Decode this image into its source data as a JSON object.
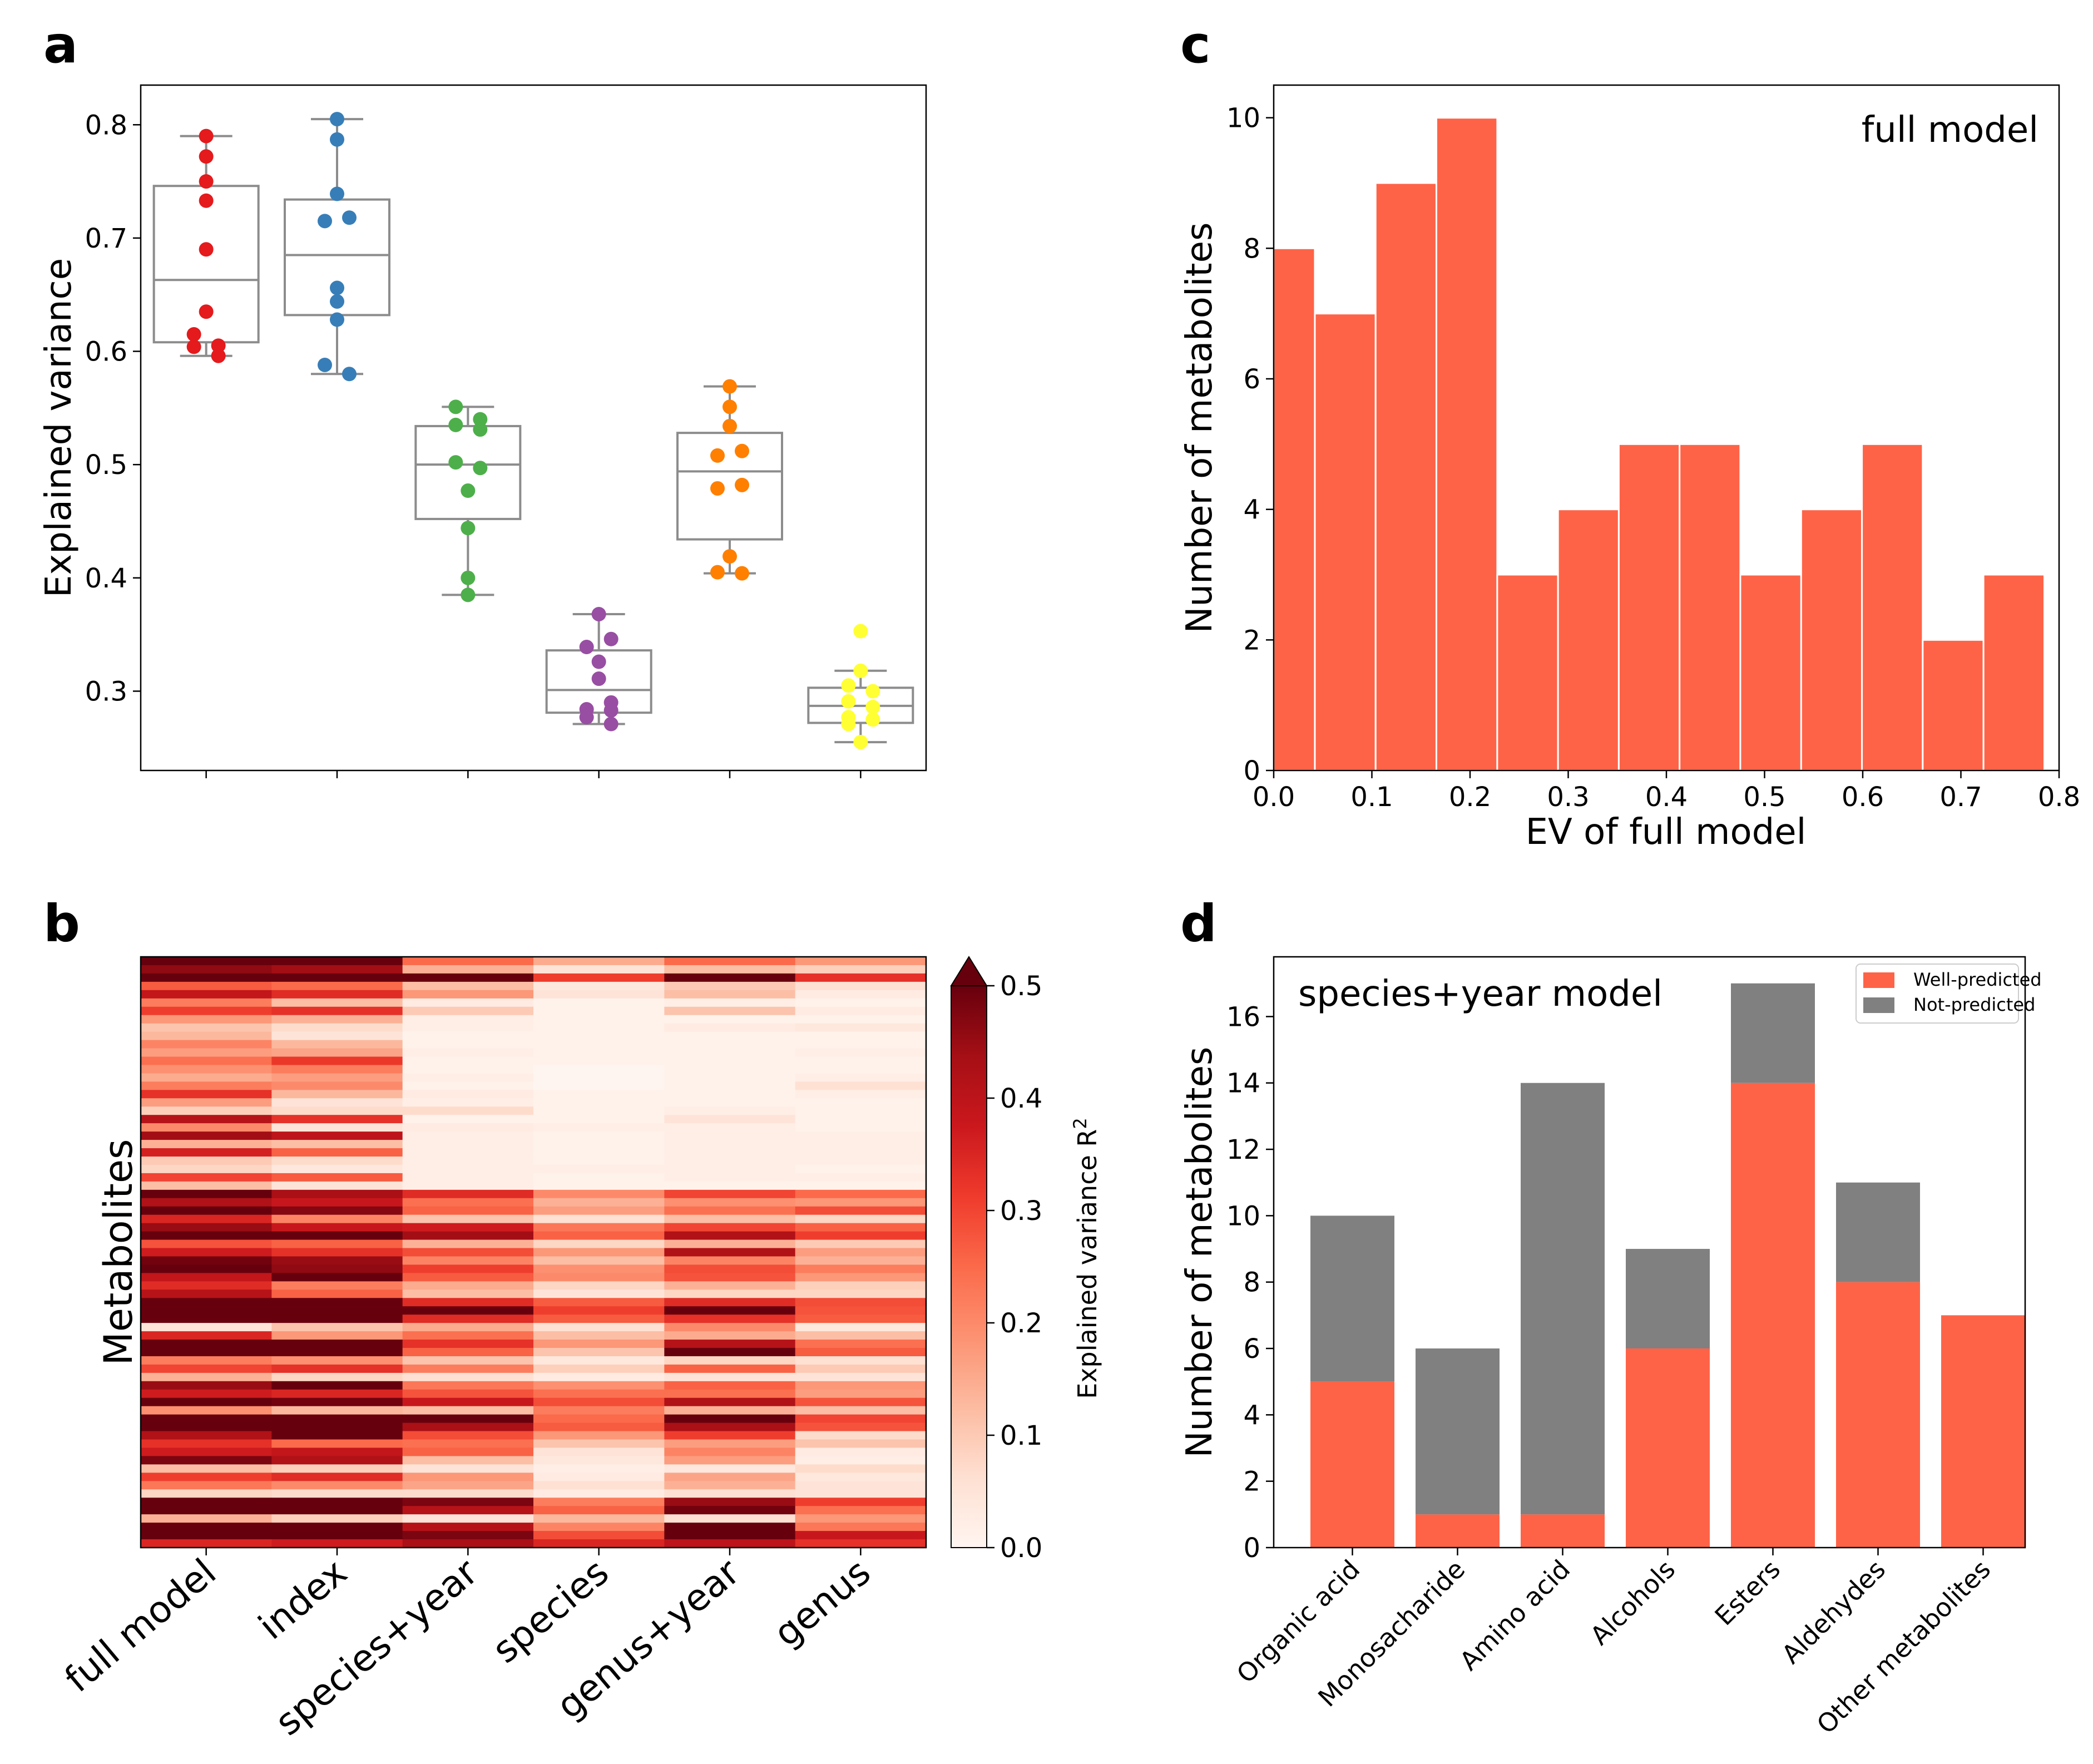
{
  "panel_labels": {
    "a": "a",
    "b": "b",
    "c": "c",
    "d": "d"
  },
  "colors": {
    "full_model": "#e41a1c",
    "index": "#377eb8",
    "species_year": "#4daf4a",
    "species": "#984ea3",
    "genus_year": "#ff7f00",
    "genus": "#ffff33",
    "bar": "#ff6347",
    "not_predicted": "#808080",
    "box": "#8c8c8c"
  },
  "chart_data": [
    {
      "panel": "a",
      "type": "box",
      "title": "",
      "xlabel": "",
      "ylabel": "Explained variance",
      "ylim": [
        0.23,
        0.835
      ],
      "yticks": [
        "0.3",
        "0.4",
        "0.5",
        "0.6",
        "0.7",
        "0.8"
      ],
      "categories": [
        "full model",
        "index",
        "species+year",
        "species",
        "genus+year",
        "genus"
      ],
      "series": [
        {
          "name": "full model",
          "color": "#e41a1c",
          "points": [
            0.79,
            0.772,
            0.75,
            0.733,
            0.69,
            0.635,
            0.615,
            0.605,
            0.604,
            0.596
          ],
          "q1": 0.608,
          "median": 0.663,
          "q3": 0.746,
          "whisker_low": 0.596,
          "whisker_high": 0.79
        },
        {
          "name": "index",
          "color": "#377eb8",
          "points": [
            0.805,
            0.787,
            0.739,
            0.718,
            0.715,
            0.656,
            0.644,
            0.628,
            0.588,
            0.58
          ],
          "q1": 0.632,
          "median": 0.685,
          "q3": 0.734,
          "whisker_low": 0.58,
          "whisker_high": 0.805
        },
        {
          "name": "species+year",
          "color": "#4daf4a",
          "points": [
            0.551,
            0.54,
            0.535,
            0.531,
            0.502,
            0.497,
            0.477,
            0.444,
            0.4,
            0.385
          ],
          "q1": 0.452,
          "median": 0.5,
          "q3": 0.534,
          "whisker_low": 0.385,
          "whisker_high": 0.551
        },
        {
          "name": "species",
          "color": "#984ea3",
          "points": [
            0.368,
            0.346,
            0.339,
            0.326,
            0.311,
            0.29,
            0.284,
            0.283,
            0.277,
            0.271
          ],
          "q1": 0.281,
          "median": 0.301,
          "q3": 0.336,
          "whisker_low": 0.271,
          "whisker_high": 0.368
        },
        {
          "name": "genus+year",
          "color": "#ff7f00",
          "points": [
            0.569,
            0.551,
            0.534,
            0.512,
            0.508,
            0.482,
            0.479,
            0.419,
            0.405,
            0.404
          ],
          "q1": 0.434,
          "median": 0.494,
          "q3": 0.528,
          "whisker_low": 0.404,
          "whisker_high": 0.569
        },
        {
          "name": "genus",
          "color": "#ffff33",
          "points": [
            0.353,
            0.318,
            0.305,
            0.3,
            0.291,
            0.286,
            0.277,
            0.275,
            0.271,
            0.255
          ],
          "q1": 0.272,
          "median": 0.287,
          "q3": 0.303,
          "whisker_low": 0.255,
          "whisker_high": 0.318
        }
      ]
    },
    {
      "panel": "b",
      "type": "heatmap",
      "xlabel": "",
      "ylabel": "Metabolites",
      "categories": [
        "full model",
        "index",
        "species+year",
        "species",
        "genus+year",
        "genus"
      ],
      "colorbar_label": "Explained variance R",
      "colorbar_label_sup": "2",
      "colorbar_ticks": [
        "0.0",
        "0.1",
        "0.2",
        "0.3",
        "0.4",
        "0.5"
      ],
      "vmin": 0.0,
      "vmax": 0.5,
      "rows": [
        [
          0.53,
          0.5,
          0.25,
          0.15,
          0.25,
          0.18
        ],
        [
          0.46,
          0.44,
          0.14,
          0.05,
          0.12,
          0.09
        ],
        [
          0.56,
          0.52,
          0.51,
          0.31,
          0.55,
          0.33
        ],
        [
          0.27,
          0.25,
          0.12,
          0.04,
          0.1,
          0.06
        ],
        [
          0.39,
          0.34,
          0.18,
          0.05,
          0.12,
          0.03
        ],
        [
          0.22,
          0.12,
          0.03,
          0.01,
          0.02,
          0.01
        ],
        [
          0.31,
          0.33,
          0.1,
          0.01,
          0.11,
          0.03
        ],
        [
          0.18,
          0.14,
          0.02,
          0.01,
          0.01,
          0.01
        ],
        [
          0.11,
          0.07,
          0.02,
          0.01,
          0.03,
          0.04
        ],
        [
          0.13,
          0.05,
          0.01,
          0.01,
          0.01,
          0.01
        ],
        [
          0.21,
          0.13,
          0.01,
          0.01,
          0.01,
          0.01
        ],
        [
          0.17,
          0.16,
          0.02,
          0.01,
          0.01,
          0.02
        ],
        [
          0.24,
          0.32,
          0.01,
          0.01,
          0.01,
          0.01
        ],
        [
          0.19,
          0.22,
          0.01,
          0.0,
          0.01,
          0.01
        ],
        [
          0.15,
          0.17,
          0.02,
          0.0,
          0.01,
          0.02
        ],
        [
          0.22,
          0.2,
          0.01,
          0.0,
          0.01,
          0.06
        ],
        [
          0.33,
          0.13,
          0.03,
          0.01,
          0.01,
          0.02
        ],
        [
          0.17,
          0.05,
          0.02,
          0.01,
          0.01,
          0.01
        ],
        [
          0.09,
          0.07,
          0.07,
          0.01,
          0.02,
          0.01
        ],
        [
          0.41,
          0.33,
          0.01,
          0.01,
          0.05,
          0.01
        ],
        [
          0.2,
          0.05,
          0.03,
          0.02,
          0.02,
          0.01
        ],
        [
          0.44,
          0.4,
          0.02,
          0.01,
          0.02,
          0.02
        ],
        [
          0.14,
          0.12,
          0.02,
          0.01,
          0.02,
          0.02
        ],
        [
          0.36,
          0.26,
          0.02,
          0.01,
          0.02,
          0.02
        ],
        [
          0.1,
          0.07,
          0.02,
          0.01,
          0.02,
          0.02
        ],
        [
          0.08,
          0.04,
          0.02,
          0.02,
          0.02,
          0.01
        ],
        [
          0.3,
          0.27,
          0.02,
          0.01,
          0.02,
          0.02
        ],
        [
          0.12,
          0.05,
          0.02,
          0.01,
          0.01,
          0.01
        ],
        [
          0.56,
          0.43,
          0.34,
          0.2,
          0.3,
          0.25
        ],
        [
          0.42,
          0.38,
          0.24,
          0.14,
          0.19,
          0.18
        ],
        [
          0.53,
          0.47,
          0.26,
          0.17,
          0.24,
          0.29
        ],
        [
          0.35,
          0.21,
          0.11,
          0.06,
          0.12,
          0.08
        ],
        [
          0.45,
          0.38,
          0.37,
          0.23,
          0.3,
          0.26
        ],
        [
          0.6,
          0.58,
          0.44,
          0.26,
          0.42,
          0.31
        ],
        [
          0.28,
          0.26,
          0.14,
          0.08,
          0.14,
          0.1
        ],
        [
          0.37,
          0.33,
          0.29,
          0.18,
          0.42,
          0.17
        ],
        [
          0.49,
          0.45,
          0.21,
          0.12,
          0.21,
          0.14
        ],
        [
          0.51,
          0.46,
          0.31,
          0.19,
          0.29,
          0.22
        ],
        [
          0.39,
          0.55,
          0.27,
          0.2,
          0.28,
          0.18
        ],
        [
          0.34,
          0.22,
          0.15,
          0.08,
          0.14,
          0.09
        ],
        [
          0.41,
          0.26,
          0.12,
          0.05,
          0.08,
          0.08
        ],
        [
          0.6,
          0.6,
          0.34,
          0.27,
          0.34,
          0.29
        ],
        [
          0.62,
          0.59,
          0.5,
          0.31,
          0.57,
          0.28
        ],
        [
          0.62,
          0.61,
          0.34,
          0.27,
          0.33,
          0.27
        ],
        [
          0.05,
          0.11,
          0.15,
          0.06,
          0.2,
          0.04
        ],
        [
          0.35,
          0.18,
          0.24,
          0.12,
          0.15,
          0.12
        ],
        [
          0.55,
          0.52,
          0.33,
          0.18,
          0.41,
          0.24
        ],
        [
          0.52,
          0.56,
          0.26,
          0.11,
          0.55,
          0.27
        ],
        [
          0.22,
          0.19,
          0.11,
          0.04,
          0.08,
          0.06
        ],
        [
          0.3,
          0.33,
          0.22,
          0.09,
          0.26,
          0.1
        ],
        [
          0.14,
          0.08,
          0.06,
          0.03,
          0.05,
          0.05
        ],
        [
          0.45,
          0.53,
          0.23,
          0.19,
          0.26,
          0.18
        ],
        [
          0.37,
          0.35,
          0.28,
          0.24,
          0.24,
          0.17
        ],
        [
          0.58,
          0.49,
          0.38,
          0.29,
          0.42,
          0.28
        ],
        [
          0.19,
          0.13,
          0.12,
          0.22,
          0.14,
          0.12
        ],
        [
          0.6,
          0.59,
          0.5,
          0.25,
          0.55,
          0.3
        ],
        [
          0.6,
          0.6,
          0.43,
          0.27,
          0.43,
          0.28
        ],
        [
          0.42,
          0.56,
          0.29,
          0.18,
          0.31,
          0.07
        ],
        [
          0.33,
          0.25,
          0.24,
          0.11,
          0.17,
          0.11
        ],
        [
          0.37,
          0.39,
          0.26,
          0.05,
          0.21,
          0.03
        ],
        [
          0.48,
          0.42,
          0.12,
          0.04,
          0.17,
          0.02
        ],
        [
          0.12,
          0.09,
          0.05,
          0.02,
          0.04,
          0.07
        ],
        [
          0.31,
          0.34,
          0.18,
          0.03,
          0.16,
          0.04
        ],
        [
          0.23,
          0.2,
          0.16,
          0.06,
          0.14,
          0.05
        ],
        [
          0.08,
          0.07,
          0.07,
          0.03,
          0.06,
          0.05
        ],
        [
          0.59,
          0.57,
          0.48,
          0.22,
          0.45,
          0.31
        ],
        [
          0.56,
          0.56,
          0.41,
          0.26,
          0.49,
          0.24
        ],
        [
          0.14,
          0.09,
          0.05,
          0.13,
          0.06,
          0.18
        ],
        [
          0.59,
          0.59,
          0.41,
          0.21,
          0.55,
          0.23
        ],
        [
          0.55,
          0.55,
          0.48,
          0.29,
          0.57,
          0.38
        ],
        [
          0.35,
          0.37,
          0.43,
          0.35,
          0.4,
          0.33
        ]
      ]
    },
    {
      "panel": "c",
      "type": "bar",
      "title": "",
      "annotation": "full model",
      "xlabel": "EV of full model",
      "ylabel": "Number of metabolites",
      "xlim": [
        0.0,
        0.8
      ],
      "ylim": [
        0,
        10.5
      ],
      "xticks": [
        "0.0",
        "0.1",
        "0.2",
        "0.3",
        "0.4",
        "0.5",
        "0.6",
        "0.7",
        "0.8"
      ],
      "yticks": [
        "0",
        "2",
        "4",
        "6",
        "8",
        "10"
      ],
      "bin_edges": [
        0.0,
        0.0419,
        0.1038,
        0.1657,
        0.2277,
        0.2896,
        0.3515,
        0.4134,
        0.4753,
        0.5373,
        0.5992,
        0.6611,
        0.723,
        0.785
      ],
      "values": [
        8,
        7,
        9,
        10,
        3,
        4,
        5,
        5,
        3,
        4,
        5,
        2,
        3
      ]
    },
    {
      "panel": "d",
      "type": "bar",
      "stacked": true,
      "annotation": "species+year model",
      "xlabel": "",
      "ylabel": "Number of metabolites",
      "ylim": [
        0,
        17.8
      ],
      "yticks": [
        "0",
        "2",
        "4",
        "6",
        "8",
        "10",
        "12",
        "14",
        "16"
      ],
      "categories": [
        "Organic acid",
        "Monosacharide",
        "Amino acid",
        "Alcohols",
        "Esters",
        "Aldehydes",
        "Other metabolites"
      ],
      "legend_position": "top-right",
      "series": [
        {
          "name": "Well-predicted",
          "color": "#ff6347",
          "values": [
            5,
            1,
            1,
            6,
            14,
            8,
            7
          ]
        },
        {
          "name": "Not-predicted",
          "color": "#808080",
          "values": [
            5,
            5,
            13,
            3,
            3,
            3,
            0
          ]
        }
      ]
    }
  ]
}
